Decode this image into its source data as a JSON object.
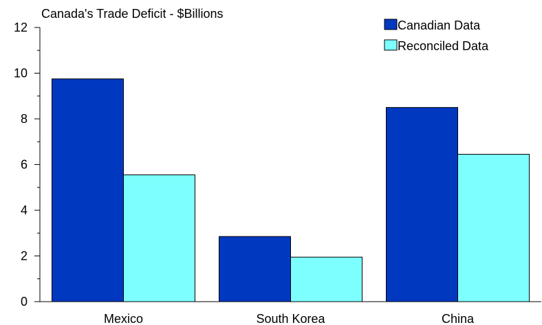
{
  "chart_data": {
    "type": "bar",
    "title": "Canada's Trade Deficit - $Billions",
    "xlabel": "",
    "ylabel": "",
    "categories": [
      "Mexico",
      "South Korea",
      "China"
    ],
    "series": [
      {
        "name": "Canadian Data",
        "values": [
          9.75,
          2.85,
          8.5
        ],
        "color": "#0038c0"
      },
      {
        "name": "Reconciled Data",
        "values": [
          5.55,
          1.95,
          6.45
        ],
        "color": "#7effff"
      }
    ],
    "ylim": [
      0,
      12
    ],
    "yticks": [
      "0",
      "2",
      "4",
      "6",
      "8",
      "10",
      "12"
    ],
    "grid": false,
    "legend_position": "top-right"
  }
}
